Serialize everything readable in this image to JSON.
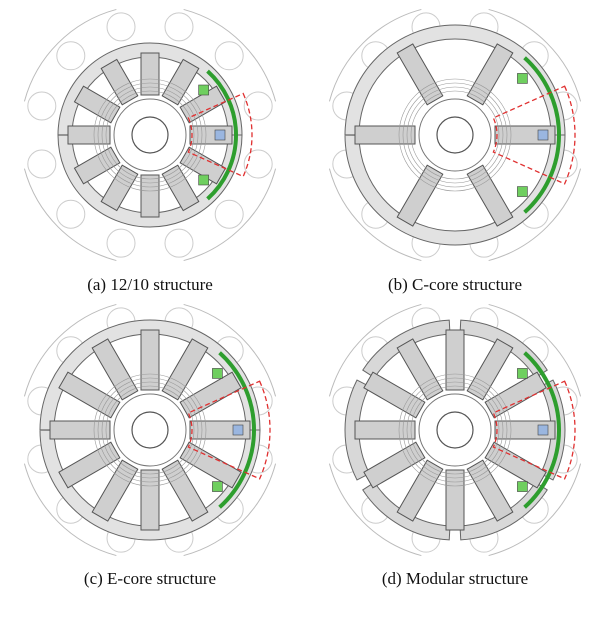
{
  "panels": [
    {
      "caption": "(a)  12/10 structure"
    },
    {
      "caption": "(b)  C-core structure"
    },
    {
      "caption": "(c)  E-core structure"
    },
    {
      "caption": "(d)  Modular structure"
    }
  ]
}
